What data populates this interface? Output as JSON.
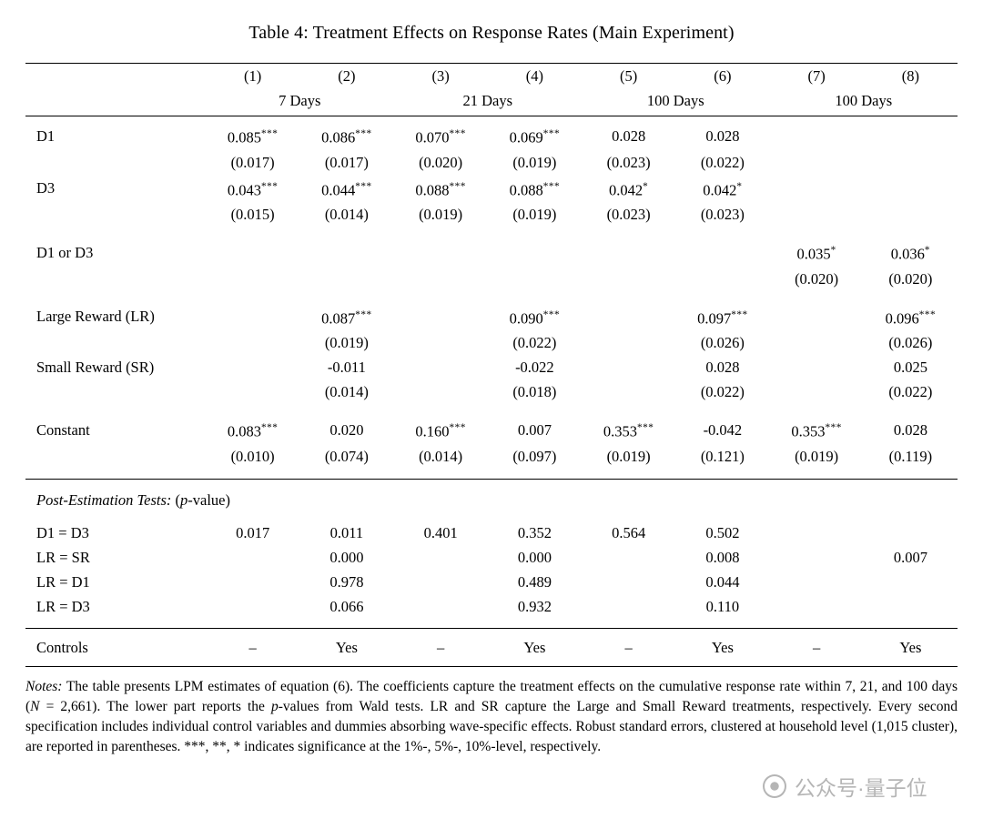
{
  "title": "Table 4: Treatment Effects on Response Rates (Main Experiment)",
  "table": {
    "columns": [
      "(1)",
      "(2)",
      "(3)",
      "(4)",
      "(5)",
      "(6)",
      "(7)",
      "(8)"
    ],
    "groups": [
      {
        "label": "7 Days",
        "span": 2
      },
      {
        "label": "21 Days",
        "span": 2
      },
      {
        "label": "100 Days",
        "span": 2
      },
      {
        "label": "100 Days",
        "span": 2
      }
    ],
    "coef_groups": [
      [
        {
          "label": "D1",
          "est": [
            "0.085***",
            "0.086***",
            "0.070***",
            "0.069***",
            "0.028",
            "0.028",
            "",
            ""
          ],
          "se": [
            "(0.017)",
            "(0.017)",
            "(0.020)",
            "(0.019)",
            "(0.023)",
            "(0.022)",
            "",
            ""
          ]
        },
        {
          "label": "D3",
          "est": [
            "0.043***",
            "0.044***",
            "0.088***",
            "0.088***",
            "0.042*",
            "0.042*",
            "",
            ""
          ],
          "se": [
            "(0.015)",
            "(0.014)",
            "(0.019)",
            "(0.019)",
            "(0.023)",
            "(0.023)",
            "",
            ""
          ]
        }
      ],
      [
        {
          "label": "D1 or D3",
          "est": [
            "",
            "",
            "",
            "",
            "",
            "",
            "0.035*",
            "0.036*"
          ],
          "se": [
            "",
            "",
            "",
            "",
            "",
            "",
            "(0.020)",
            "(0.020)"
          ]
        }
      ],
      [
        {
          "label": "Large Reward (LR)",
          "est": [
            "",
            "0.087***",
            "",
            "0.090***",
            "",
            "0.097***",
            "",
            "0.096***"
          ],
          "se": [
            "",
            "(0.019)",
            "",
            "(0.022)",
            "",
            "(0.026)",
            "",
            "(0.026)"
          ]
        },
        {
          "label": "Small Reward (SR)",
          "est": [
            "",
            "-0.011",
            "",
            "-0.022",
            "",
            "0.028",
            "",
            "0.025"
          ],
          "se": [
            "",
            "(0.014)",
            "",
            "(0.018)",
            "",
            "(0.022)",
            "",
            "(0.022)"
          ]
        }
      ],
      [
        {
          "label": "Constant",
          "est": [
            "0.083***",
            "0.020",
            "0.160***",
            "0.007",
            "0.353***",
            "-0.042",
            "0.353***",
            "0.028"
          ],
          "se": [
            "(0.010)",
            "(0.074)",
            "(0.014)",
            "(0.097)",
            "(0.019)",
            "(0.121)",
            "(0.019)",
            "(0.119)"
          ]
        }
      ]
    ],
    "post_tests": {
      "header_parts": [
        {
          "text": "Post-Estimation Tests:",
          "italic": true
        },
        {
          "text": " (",
          "italic": false
        },
        {
          "text": "p",
          "italic": true
        },
        {
          "text": "-value)",
          "italic": false
        }
      ],
      "rows": [
        {
          "label": "D1 = D3",
          "cells": [
            "0.017",
            "0.011",
            "0.401",
            "0.352",
            "0.564",
            "0.502",
            "",
            ""
          ]
        },
        {
          "label": "LR = SR",
          "cells": [
            "",
            "0.000",
            "",
            "0.000",
            "",
            "0.008",
            "",
            "0.007"
          ]
        },
        {
          "label": "LR = D1",
          "cells": [
            "",
            "0.978",
            "",
            "0.489",
            "",
            "0.044",
            "",
            ""
          ]
        },
        {
          "label": "LR = D3",
          "cells": [
            "",
            "0.066",
            "",
            "0.932",
            "",
            "0.110",
            "",
            ""
          ]
        }
      ]
    },
    "controls": {
      "label": "Controls",
      "cells": [
        "–",
        "Yes",
        "–",
        "Yes",
        "–",
        "Yes",
        "–",
        "Yes"
      ]
    }
  },
  "notes_parts": [
    {
      "text": "Notes:",
      "italic": true
    },
    {
      "text": " The table presents LPM estimates of equation (6).  The coefficients capture the treatment effects on the cumulative response rate within 7, 21, and 100 days (",
      "italic": false
    },
    {
      "text": "N",
      "italic": true
    },
    {
      "text": " = 2,661).  The lower part reports the ",
      "italic": false
    },
    {
      "text": "p",
      "italic": true
    },
    {
      "text": "-values from Wald tests.  LR and SR capture the Large and Small Reward treatments, respectively. Every second specification includes individual control variables and dummies absorbing wave-specific effects. Robust standard errors, clustered at household level (1,015 cluster), are reported in parentheses.  ***, **, * indicates significance at the 1%-, 5%-, 10%-level, respectively.",
      "italic": false
    }
  ],
  "watermark": {
    "icon": "circle-logo-icon",
    "text": "公众号·量子位"
  }
}
